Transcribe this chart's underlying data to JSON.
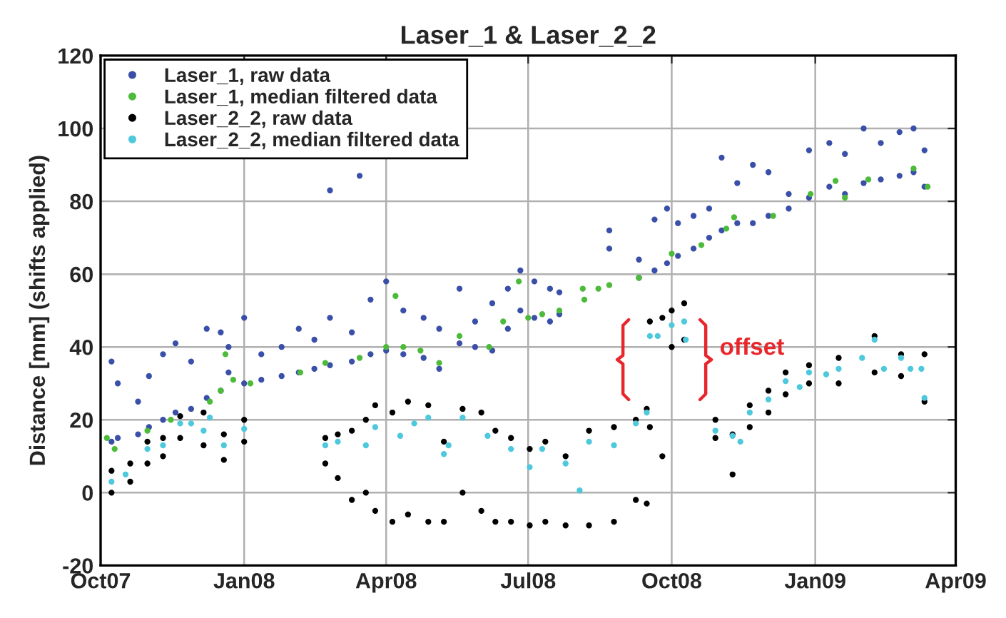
{
  "chart_data": {
    "type": "scatter",
    "title": "Laser_1 & Laser_2_2",
    "ylabel": "Distance [mm] (shifts applied)",
    "xlim": [
      "2007-10-01",
      "2009-04-01"
    ],
    "xticks": [
      {
        "value": "2007-10-01",
        "label": "Oct07"
      },
      {
        "value": "2008-01-01",
        "label": "Jan08"
      },
      {
        "value": "2008-04-01",
        "label": "Apr08"
      },
      {
        "value": "2008-07-01",
        "label": "Jul08"
      },
      {
        "value": "2008-10-01",
        "label": "Oct08"
      },
      {
        "value": "2009-01-01",
        "label": "Jan09"
      },
      {
        "value": "2009-04-01",
        "label": "Apr09"
      }
    ],
    "ylim": [
      -20,
      120
    ],
    "yticks": [
      -20,
      0,
      20,
      40,
      60,
      80,
      100,
      120
    ],
    "grid": true,
    "legend": "top left",
    "marker": "circle",
    "annotations": [
      {
        "text": "offset",
        "x": "2008-10-10",
        "y": 42
      }
    ],
    "series": [
      {
        "name": "Laser_1, raw data",
        "color": "#3a4fa8",
        "x": [
          "2007-10-08",
          "2007-10-08",
          "2007-10-12",
          "2007-10-12",
          "2007-10-25",
          "2007-10-25",
          "2007-11-01",
          "2007-11-01",
          "2007-11-10",
          "2007-11-10",
          "2007-11-18",
          "2007-11-18",
          "2007-11-28",
          "2007-11-28",
          "2007-12-08",
          "2007-12-08",
          "2007-12-17",
          "2007-12-17",
          "2007-12-22",
          "2007-12-22",
          "2008-01-01",
          "2008-01-01",
          "2008-01-12",
          "2008-01-12",
          "2008-01-25",
          "2008-01-25",
          "2008-02-05",
          "2008-02-05",
          "2008-02-15",
          "2008-02-15",
          "2008-02-25",
          "2008-02-25",
          "2008-02-25",
          "2008-03-10",
          "2008-03-10",
          "2008-03-15",
          "2008-03-22",
          "2008-03-22",
          "2008-04-01",
          "2008-04-01",
          "2008-04-12",
          "2008-04-12",
          "2008-04-25",
          "2008-04-25",
          "2008-05-05",
          "2008-05-05",
          "2008-05-18",
          "2008-05-18",
          "2008-05-28",
          "2008-05-28",
          "2008-06-08",
          "2008-06-08",
          "2008-06-18",
          "2008-06-18",
          "2008-06-26",
          "2008-06-26",
          "2008-07-05",
          "2008-07-05",
          "2008-07-15",
          "2008-07-15",
          "2008-07-21",
          "2008-07-21",
          "2008-08-22",
          "2008-08-22",
          "2008-09-10",
          "2008-09-10",
          "2008-09-20",
          "2008-09-20",
          "2008-09-28",
          "2008-09-28",
          "2008-10-05",
          "2008-10-05",
          "2008-10-15",
          "2008-10-15",
          "2008-10-25",
          "2008-10-25",
          "2008-11-02",
          "2008-11-02",
          "2008-11-12",
          "2008-11-12",
          "2008-11-22",
          "2008-11-22",
          "2008-12-02",
          "2008-12-02",
          "2008-12-15",
          "2008-12-15",
          "2008-12-28",
          "2008-12-28",
          "2009-01-10",
          "2009-01-10",
          "2009-01-20",
          "2009-01-20",
          "2009-02-01",
          "2009-02-01",
          "2009-02-12",
          "2009-02-12",
          "2009-02-24",
          "2009-02-24",
          "2009-03-05",
          "2009-03-05",
          "2009-03-12",
          "2009-03-12"
        ],
        "values": [
          14,
          36,
          15,
          30,
          16,
          25,
          18,
          32,
          20,
          38,
          22,
          41,
          23,
          36,
          26,
          45,
          28,
          44,
          33,
          40,
          30,
          48,
          31,
          38,
          32,
          40,
          33,
          45,
          34,
          42,
          35,
          48,
          83,
          36,
          44,
          87,
          38,
          53,
          39,
          58,
          38,
          50,
          37,
          48,
          34,
          45,
          41,
          56,
          40,
          47,
          39,
          52,
          45,
          56,
          50,
          61,
          48,
          58,
          47,
          56,
          49,
          55,
          67,
          72,
          59,
          64,
          61,
          75,
          63,
          78,
          65,
          74,
          67,
          76,
          70,
          78,
          72,
          92,
          74,
          85,
          74,
          90,
          76,
          88,
          78,
          82,
          81,
          94,
          84,
          96,
          82,
          93,
          85,
          100,
          86,
          96,
          87,
          99,
          88,
          100,
          84,
          94
        ]
      },
      {
        "name": "Laser_1, median filtered data",
        "color": "#4dbb3a",
        "x": [
          "2007-10-05",
          "2007-10-10",
          "2007-10-31",
          "2007-11-15",
          "2007-12-10",
          "2007-12-17",
          "2007-12-20",
          "2007-12-25",
          "2008-01-05",
          "2008-02-06",
          "2008-02-22",
          "2008-03-15",
          "2008-04-01",
          "2008-04-07",
          "2008-04-12",
          "2008-04-23",
          "2008-05-05",
          "2008-05-18",
          "2008-06-06",
          "2008-06-15",
          "2008-06-25",
          "2008-07-01",
          "2008-07-10",
          "2008-07-21",
          "2008-08-05",
          "2008-08-06",
          "2008-08-15",
          "2008-08-22",
          "2008-09-10",
          "2008-10-01",
          "2008-10-20",
          "2008-11-05",
          "2008-11-10",
          "2008-12-05",
          "2008-12-29",
          "2009-01-14",
          "2009-01-20",
          "2009-02-04",
          "2009-03-05",
          "2009-03-14"
        ],
        "values": [
          15,
          12,
          17,
          20,
          25,
          28,
          38,
          31,
          30,
          33,
          35.6,
          37,
          40,
          54,
          40,
          39,
          35.6,
          43,
          40,
          47,
          58,
          48,
          49,
          50,
          56,
          53,
          56,
          57,
          59,
          65.6,
          68,
          72.5,
          75.6,
          76,
          82,
          85.6,
          81,
          86,
          89,
          84
        ]
      },
      {
        "name": "Laser_2_2, raw data",
        "color": "#000000",
        "x": [
          "2007-10-08",
          "2007-10-08",
          "2007-10-20",
          "2007-10-20",
          "2007-10-31",
          "2007-10-31",
          "2007-11-10",
          "2007-11-10",
          "2007-11-21",
          "2007-11-21",
          "2007-12-06",
          "2007-12-06",
          "2007-12-19",
          "2007-12-19",
          "2008-01-01",
          "2008-01-01",
          "2008-02-22",
          "2008-02-22",
          "2008-03-01",
          "2008-03-01",
          "2008-03-10",
          "2008-03-10",
          "2008-03-19",
          "2008-03-19",
          "2008-03-25",
          "2008-03-25",
          "2008-04-05",
          "2008-04-05",
          "2008-04-15",
          "2008-04-15",
          "2008-04-28",
          "2008-04-28",
          "2008-05-08",
          "2008-05-08",
          "2008-05-20",
          "2008-05-20",
          "2008-06-01",
          "2008-06-01",
          "2008-06-10",
          "2008-06-10",
          "2008-06-20",
          "2008-06-20",
          "2008-07-02",
          "2008-07-02",
          "2008-07-12",
          "2008-07-12",
          "2008-07-25",
          "2008-07-25",
          "2008-08-09",
          "2008-08-09",
          "2008-08-25",
          "2008-08-25",
          "2008-09-08",
          "2008-09-08",
          "2008-09-15",
          "2008-09-15",
          "2008-09-17",
          "2008-09-17",
          "2008-09-25",
          "2008-09-25",
          "2008-10-01",
          "2008-10-01",
          "2008-10-09",
          "2008-10-09",
          "2008-10-29",
          "2008-10-29",
          "2008-11-09",
          "2008-11-09",
          "2008-11-20",
          "2008-11-20",
          "2008-12-02",
          "2008-12-02",
          "2008-12-13",
          "2008-12-13",
          "2008-12-28",
          "2008-12-28",
          "2009-01-16",
          "2009-01-16",
          "2009-02-08",
          "2009-02-08",
          "2009-02-25",
          "2009-02-25",
          "2009-03-12",
          "2009-03-12"
        ],
        "values": [
          0,
          6,
          3,
          8,
          8,
          14,
          10,
          15,
          15,
          21,
          13,
          22,
          9,
          16,
          14,
          20,
          8,
          15,
          4,
          16,
          -2,
          17,
          0,
          20,
          -5,
          24,
          -8,
          22,
          -6,
          25,
          -8,
          24,
          -8,
          14,
          0,
          23,
          -5,
          22,
          -8,
          17,
          -8,
          15,
          -9,
          12,
          -8,
          14,
          -9,
          10,
          -9,
          17,
          -8,
          18,
          -2,
          20,
          -3,
          23,
          18,
          47,
          10,
          48,
          40,
          50,
          42,
          52,
          15,
          20,
          5,
          16,
          18,
          24,
          22,
          28,
          27,
          33,
          30,
          35,
          30,
          37,
          33,
          43,
          32,
          38,
          25,
          38
        ]
      },
      {
        "name": "Laser_2_2, median filtered data",
        "color": "#4ec8dc",
        "x": [
          "2007-10-08",
          "2007-10-17",
          "2007-10-31",
          "2007-11-10",
          "2007-11-21",
          "2007-11-28",
          "2007-12-06",
          "2007-12-10",
          "2007-12-19",
          "2008-01-01",
          "2008-02-22",
          "2008-03-01",
          "2008-03-19",
          "2008-03-25",
          "2008-04-10",
          "2008-04-19",
          "2008-04-28",
          "2008-05-08",
          "2008-05-11",
          "2008-05-20",
          "2008-06-05",
          "2008-06-20",
          "2008-07-02",
          "2008-07-10",
          "2008-07-25",
          "2008-08-03",
          "2008-08-09",
          "2008-08-25",
          "2008-09-08",
          "2008-09-15",
          "2008-09-17",
          "2008-09-22",
          "2008-10-01",
          "2008-10-09",
          "2008-10-10",
          "2008-10-29",
          "2008-11-09",
          "2008-11-14",
          "2008-11-20",
          "2008-12-02",
          "2008-12-13",
          "2008-12-22",
          "2008-12-28",
          "2009-01-08",
          "2009-01-16",
          "2009-01-31",
          "2009-02-08",
          "2009-02-14",
          "2009-02-25",
          "2009-03-03",
          "2009-03-10",
          "2009-03-12"
        ],
        "values": [
          3,
          5,
          12,
          13,
          19,
          19,
          17,
          20.6,
          13,
          17.5,
          13,
          14,
          13,
          18,
          15.6,
          19,
          20.6,
          10.6,
          13,
          20.6,
          15.6,
          12,
          7,
          12,
          8,
          0.6,
          14,
          13,
          19,
          22,
          43,
          43,
          46,
          47,
          42,
          17,
          15.6,
          14,
          22,
          25.6,
          30.6,
          29,
          33,
          32.5,
          34,
          37,
          42,
          34,
          37,
          34,
          34,
          26
        ]
      }
    ]
  }
}
